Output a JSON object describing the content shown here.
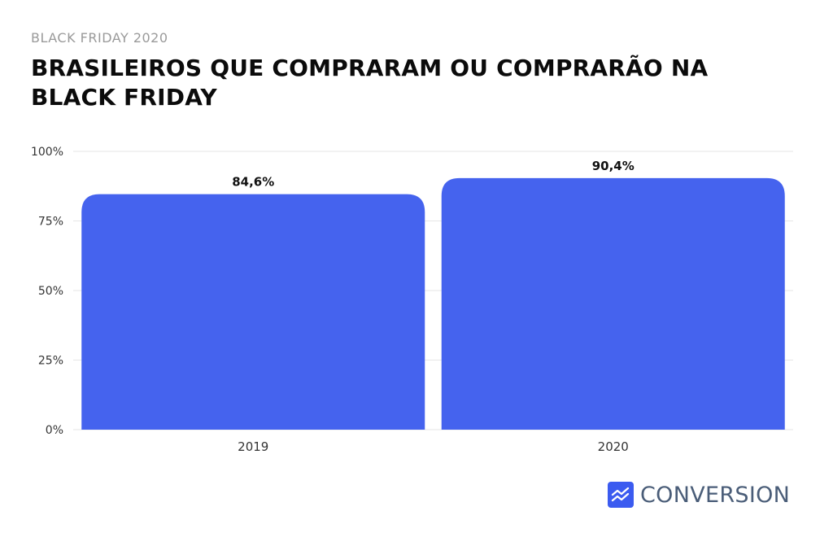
{
  "header": {
    "kicker": "BLACK FRIDAY 2020",
    "title": "BRASILEIROS QUE COMPRARAM OU COMPRARÃO NA BLACK FRIDAY"
  },
  "brand": {
    "name": "CONVERSION",
    "icon": "trend-chart-icon",
    "icon_color": "#3b5bf0",
    "text_color": "#4a5d78"
  },
  "colors": {
    "bar": "#4563ee",
    "grid": "#e6e6e6",
    "axis_text": "#333333"
  },
  "chart_data": {
    "type": "bar",
    "categories": [
      "2019",
      "2020"
    ],
    "values": [
      84.6,
      90.4
    ],
    "value_labels": [
      "84,6%",
      "90,4%"
    ],
    "ylim": [
      0,
      100
    ],
    "yticks": [
      0,
      25,
      50,
      75,
      100
    ],
    "ytick_labels": [
      "0%",
      "25%",
      "50%",
      "75%",
      "100%"
    ],
    "grid": true,
    "legend": "none"
  }
}
